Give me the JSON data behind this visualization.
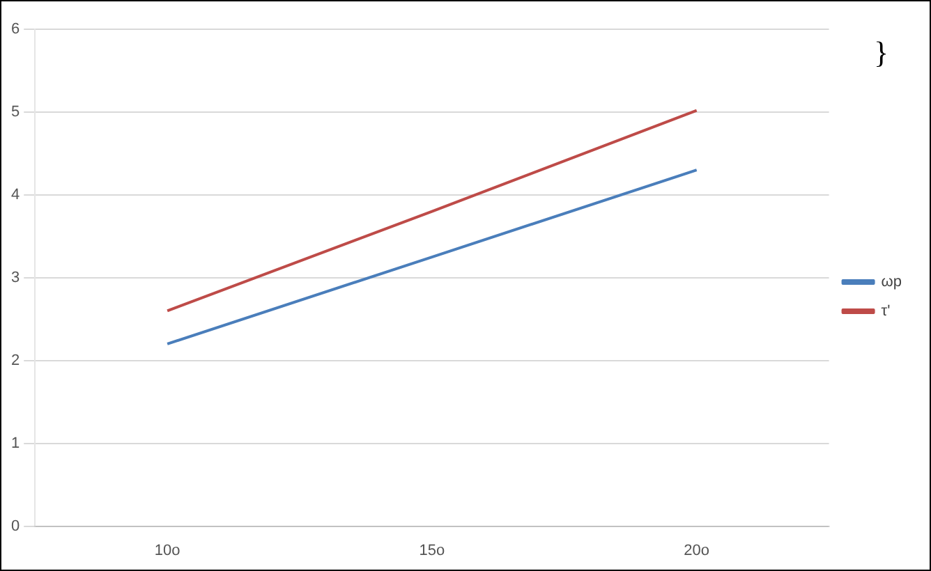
{
  "chart_data": {
    "type": "line",
    "categories": [
      "10o",
      "15o",
      "20o"
    ],
    "series": [
      {
        "name": "ωp",
        "color": "#4a7ebb",
        "values": [
          2.2,
          3.25,
          4.3
        ]
      },
      {
        "name": "τ'",
        "color": "#be4b48",
        "values": [
          2.6,
          3.8,
          5.02
        ]
      }
    ],
    "ylim": [
      0,
      6
    ],
    "yticks": [
      0,
      1,
      2,
      3,
      4,
      5,
      6
    ],
    "grid": "y",
    "legend": "right",
    "marker": "none",
    "line_style": "solid",
    "annotations": [
      "}"
    ]
  }
}
